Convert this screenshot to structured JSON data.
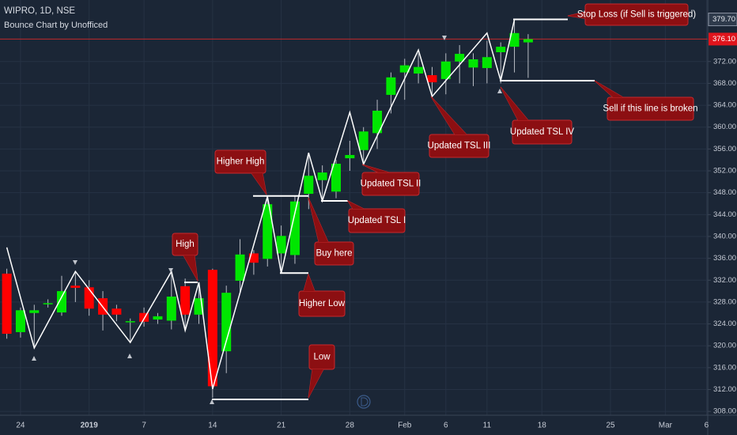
{
  "chart_data": {
    "type": "candlestick",
    "title": "WIPRO, 1D, NSE",
    "subtitle": "Bounce Chart by Unofficed",
    "categories": [
      null,
      "24",
      null,
      null,
      null,
      null,
      "2019",
      null,
      null,
      null,
      "7",
      null,
      null,
      null,
      null,
      "14",
      null,
      null,
      null,
      null,
      "21",
      null,
      null,
      null,
      null,
      "28",
      null,
      null,
      null,
      "Feb",
      null,
      null,
      "6",
      null,
      null,
      "11",
      null,
      null,
      null,
      "18",
      null,
      null,
      null,
      null,
      "25",
      null,
      null,
      null,
      "Mar",
      null,
      null,
      "6"
    ],
    "open": [
      333.2,
      322.5,
      326,
      327.6,
      326.1,
      331,
      330.7,
      328.7,
      326.8,
      324.5,
      326,
      324.8,
      324.6,
      330.9,
      325.7,
      333.9,
      319,
      331.9,
      336.9,
      335.9,
      336.9,
      336.6,
      347.8,
      350.3,
      348.2,
      354.3,
      355.8,
      358.9,
      365.9,
      370,
      369.8,
      369.5,
      368.8,
      372,
      370.9,
      370.8,
      373.7,
      374.7,
      375.5,
      null,
      null,
      null,
      null,
      null,
      null,
      null,
      null,
      null,
      null,
      null,
      null,
      null
    ],
    "high": [
      334.1,
      327,
      327.5,
      328.5,
      332.8,
      333.5,
      332,
      330,
      327.5,
      325,
      327,
      326,
      333.5,
      332.3,
      331.6,
      334.1,
      331,
      339.5,
      337.5,
      347.3,
      342,
      347.5,
      355,
      353,
      354,
      357.5,
      360,
      365,
      370,
      372.5,
      373.5,
      371,
      373.5,
      375,
      373.5,
      375.8,
      375.5,
      379.7,
      377,
      null,
      null,
      null,
      null,
      null,
      null,
      null,
      null,
      null,
      null,
      null,
      null,
      null
    ],
    "low": [
      321.3,
      321.5,
      319.6,
      327,
      325.5,
      328,
      325.5,
      322.8,
      324.5,
      320.6,
      323.5,
      324,
      323,
      322.8,
      324,
      310.5,
      315,
      329.5,
      333,
      334.5,
      333.3,
      335,
      345,
      346.6,
      347,
      352,
      353,
      356,
      362.5,
      365,
      368,
      365.6,
      366,
      368,
      367.5,
      368,
      368,
      370,
      369,
      null,
      null,
      null,
      null,
      null,
      null,
      null,
      null,
      null,
      null,
      null,
      null,
      null
    ],
    "close": [
      322.2,
      326.5,
      326.5,
      327.8,
      330,
      330.6,
      326.8,
      325.7,
      325.7,
      324.5,
      324.4,
      325.4,
      329,
      325.7,
      328.7,
      312.6,
      329.7,
      336.7,
      335.2,
      345.9,
      340.1,
      346.4,
      351.1,
      351.7,
      353.3,
      354.9,
      359.2,
      363,
      369.1,
      371.3,
      371,
      368.2,
      372,
      373.4,
      372.4,
      372.8,
      374.7,
      377.2,
      376.1,
      null,
      null,
      null,
      null,
      null,
      null,
      null,
      null,
      null,
      null,
      null,
      null,
      null
    ],
    "zigzag": [
      338,
      null,
      319.6,
      null,
      null,
      333.6,
      null,
      null,
      null,
      320.6,
      null,
      null,
      333.6,
      322.8,
      331.6,
      312.1,
      null,
      null,
      null,
      347.3,
      333.3,
      null,
      355.3,
      346.5,
      null,
      362.7,
      353.2,
      null,
      null,
      null,
      374.1,
      365.6,
      null,
      null,
      null,
      377.2,
      368.5,
      379.7,
      null,
      null,
      null,
      null,
      null,
      null,
      null,
      null,
      null,
      null,
      null,
      null,
      null,
      null
    ],
    "up_color": "#00e600",
    "down_color": "#ff0000",
    "zigzag_color": "#ffffff",
    "ylim": [
      307.3,
      383.25
    ],
    "yticks": [
      {
        "value": 308,
        "label": "308.00"
      },
      {
        "value": 312,
        "label": "312.00"
      },
      {
        "value": 316,
        "label": "316.00"
      },
      {
        "value": 320,
        "label": "320.00"
      },
      {
        "value": 324,
        "label": "324.00"
      },
      {
        "value": 328,
        "label": "328.00"
      },
      {
        "value": 332,
        "label": "332.00"
      },
      {
        "value": 336,
        "label": "336.00"
      },
      {
        "value": 340,
        "label": "340.00"
      },
      {
        "value": 344,
        "label": "344.00"
      },
      {
        "value": 348,
        "label": "348.00"
      },
      {
        "value": 352,
        "label": "352.00"
      },
      {
        "value": 356,
        "label": "356.00"
      },
      {
        "value": 360,
        "label": "360.00"
      },
      {
        "value": 364,
        "label": "364.00"
      },
      {
        "value": 368,
        "label": "368.00"
      },
      {
        "value": 372,
        "label": "372.00"
      }
    ],
    "grid": true,
    "last_price": {
      "value": 376.1,
      "label": "376.10"
    },
    "levels": [
      310.2,
      333.3,
      347.4,
      331.6,
      346.5,
      {
        "value": 379.7,
        "label": "379.70"
      },
      368.5
    ],
    "annotations": [
      "Stop Loss (if Sell is triggered)",
      "Sell if this line is broken",
      "Updated TSL IV",
      "Updated TSL III",
      "Updated TSL II",
      "Updated TSL I",
      "Higher High",
      "Buy here",
      "High",
      "Higher Low",
      "Low"
    ]
  }
}
